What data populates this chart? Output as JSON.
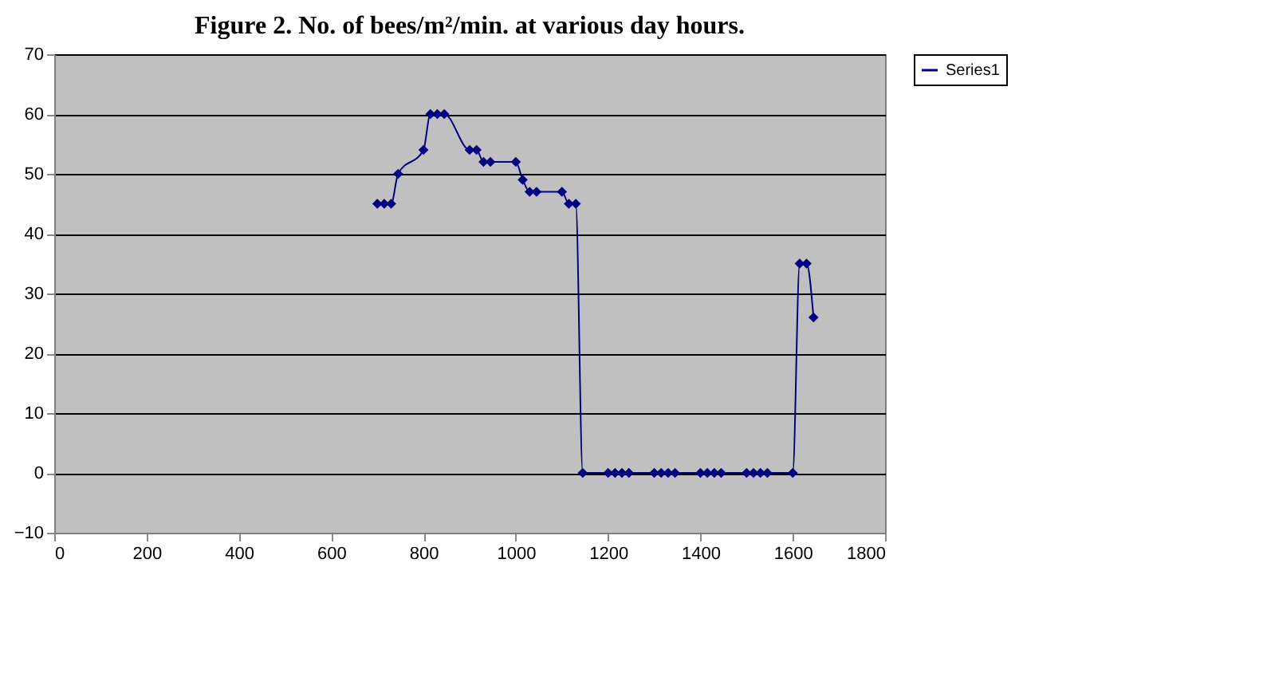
{
  "chart_data": {
    "type": "line",
    "title": "Figure 2. No. of bees/m²/min. at various day hours.",
    "x": [
      700,
      715,
      730,
      745,
      800,
      815,
      830,
      845,
      900,
      915,
      930,
      945,
      1000,
      1015,
      1030,
      1045,
      1100,
      1115,
      1130,
      1145,
      1200,
      1215,
      1230,
      1245,
      1300,
      1315,
      1330,
      1345,
      1400,
      1415,
      1430,
      1445,
      1500,
      1515,
      1530,
      1545,
      1600,
      1615,
      1630,
      1645
    ],
    "series": [
      {
        "name": "Series1",
        "color": "#000080",
        "values": [
          45,
          45,
          45,
          50,
          54,
          60,
          60,
          60,
          54,
          54,
          52,
          52,
          52,
          49,
          47,
          47,
          47,
          45,
          45,
          0,
          0,
          0,
          0,
          0,
          0,
          0,
          0,
          0,
          0,
          0,
          0,
          0,
          0,
          0,
          0,
          0,
          0,
          35,
          35,
          26
        ]
      }
    ],
    "xlim": [
      0,
      1800
    ],
    "xticks": [
      0,
      200,
      400,
      600,
      800,
      1000,
      1200,
      1400,
      1600,
      1800
    ],
    "ylim": [
      -10,
      70
    ],
    "yticks": [
      -10,
      0,
      10,
      20,
      30,
      40,
      50,
      60,
      70
    ],
    "grid": "y",
    "legend": "right",
    "marker": "diamond",
    "line_style": "solid"
  }
}
